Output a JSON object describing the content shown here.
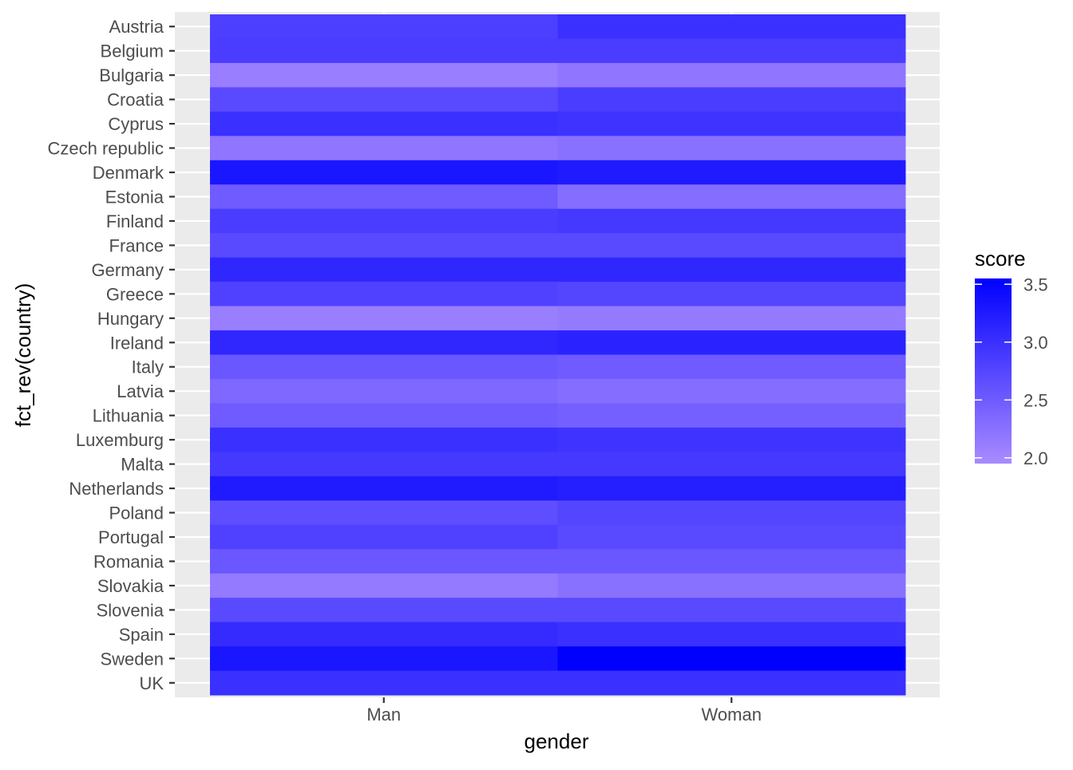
{
  "chart_data": {
    "type": "heatmap",
    "title": "",
    "xlabel": "gender",
    "ylabel": "fct_rev(country)",
    "x_categories": [
      "Man",
      "Woman"
    ],
    "y_categories": [
      "Austria",
      "Belgium",
      "Bulgaria",
      "Croatia",
      "Cyprus",
      "Czech republic",
      "Denmark",
      "Estonia",
      "Finland",
      "France",
      "Germany",
      "Greece",
      "Hungary",
      "Ireland",
      "Italy",
      "Latvia",
      "Lithuania",
      "Luxemburg",
      "Malta",
      "Netherlands",
      "Poland",
      "Portugal",
      "Romania",
      "Slovakia",
      "Slovenia",
      "Spain",
      "Sweden",
      "UK"
    ],
    "series": [
      {
        "name": "Man",
        "values": [
          2.83,
          2.85,
          2.1,
          2.7,
          3.0,
          2.2,
          3.3,
          2.5,
          2.85,
          2.7,
          3.1,
          2.8,
          2.1,
          3.1,
          2.55,
          2.35,
          2.5,
          3.0,
          2.9,
          3.25,
          2.65,
          2.8,
          2.55,
          2.15,
          2.7,
          3.05,
          3.3,
          3.0
        ]
      },
      {
        "name": "Woman",
        "values": [
          3.0,
          2.85,
          2.2,
          2.85,
          2.95,
          2.25,
          3.25,
          2.3,
          2.9,
          2.7,
          3.1,
          2.75,
          2.15,
          3.15,
          2.5,
          2.3,
          2.45,
          2.95,
          2.9,
          3.2,
          2.75,
          2.7,
          2.55,
          2.25,
          2.7,
          3.0,
          3.55,
          3.0
        ]
      }
    ],
    "legend": {
      "title": "score",
      "position": "right",
      "breaks": [
        2.0,
        2.5,
        3.0,
        3.5
      ],
      "break_labels": [
        "2.0",
        "2.5",
        "3.0",
        "3.5"
      ],
      "range": [
        1.95,
        3.55
      ],
      "low_color": "#a98bff",
      "high_color": "#0000ff"
    },
    "grid": true,
    "panel_background": "#ebebeb"
  }
}
